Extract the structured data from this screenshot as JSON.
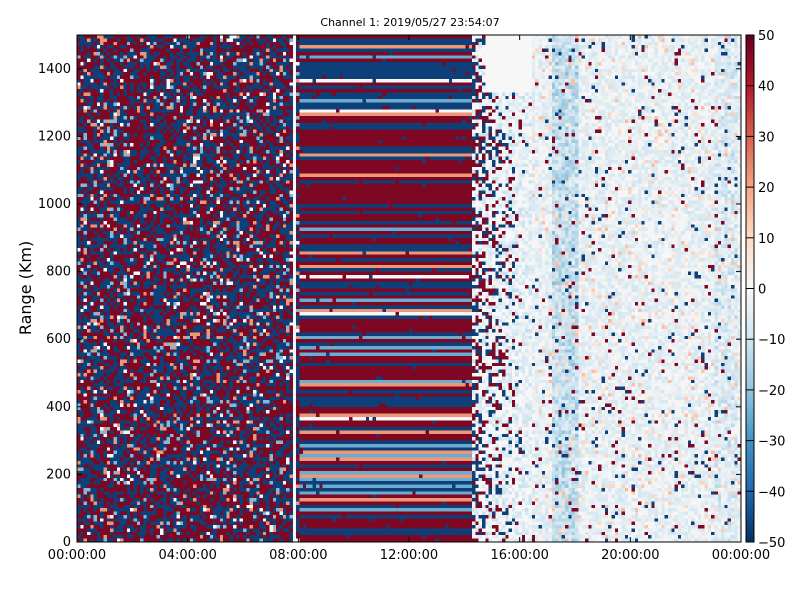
{
  "chart_data": {
    "type": "heatmap",
    "title": "Channel 1: 2019/05/27 23:54:07",
    "xlabel": "",
    "ylabel": "Range (Km)",
    "x_ticks": [
      "00:00:00",
      "04:00:00",
      "08:00:00",
      "12:00:00",
      "16:00:00",
      "20:00:00",
      "00:00:00"
    ],
    "y_ticks": [
      "0",
      "200",
      "400",
      "600",
      "800",
      "1000",
      "1200",
      "1400"
    ],
    "xlim": [
      "00:00:00",
      "00:00:00"
    ],
    "ylim": [
      0,
      1500
    ],
    "colorbar": {
      "colormap": "RdBu_r",
      "range": [
        -50,
        50
      ],
      "ticks": [
        "50",
        "40",
        "30",
        "20",
        "10",
        "0",
        "−10",
        "−20",
        "−30",
        "−40",
        "−50"
      ]
    },
    "regions": [
      {
        "x_start_hours": 0,
        "x_end_hours": 8,
        "pattern": "random noise, saturated red and blue"
      },
      {
        "x_start_hours": 8,
        "x_end_hours": 14.3,
        "pattern": "horizontal bands alternating red and blue"
      },
      {
        "x_start_hours": 14.3,
        "x_end_hours": 16.4,
        "pattern": "transition, mixed noise"
      },
      {
        "x_start_hours": 16.4,
        "x_end_hours": 24,
        "pattern": "low amplitude, mostly light blue with scattered dark pixels"
      }
    ]
  },
  "colors": {
    "dark_red": "#67001f",
    "red": "#b2182b",
    "salmon": "#f4a582",
    "white": "#f7f7f7",
    "light_blue": "#d1e5f0",
    "mid_blue": "#4393c3",
    "dark_blue": "#053061"
  }
}
